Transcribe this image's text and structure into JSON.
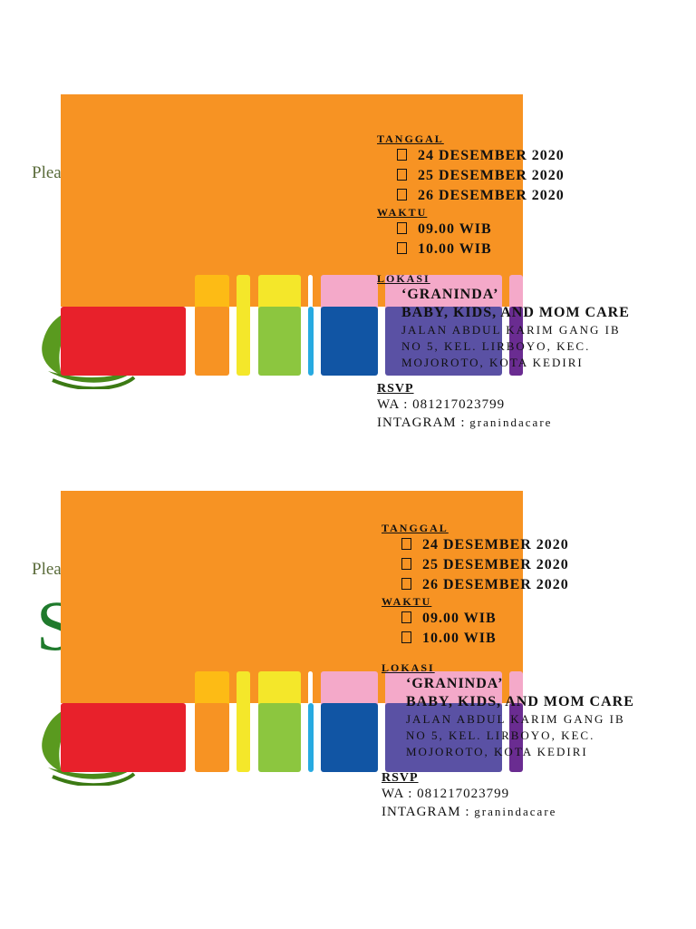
{
  "background": {
    "partial_text": "Plea",
    "script_letter": "S"
  },
  "colors": {
    "orange_panel": "#f79323",
    "bars": [
      "#e8212b",
      "#f79323",
      "#f4e72a",
      "#8cc63f",
      "#27aae1",
      "#1155a4",
      "#5a51a4",
      "#6a2c91"
    ],
    "bars_top": [
      "#fdbb15",
      "#f4e72a",
      "#f4e72a",
      "#f4a9c9",
      "#f4a9c9",
      "#f4a9c9"
    ]
  },
  "invitation": {
    "tanggal_label": "TANGGAL",
    "dates": [
      "24 DESEMBER 2020",
      "25 DESEMBER 2020",
      "26 DESEMBER 2020"
    ],
    "waktu_label": "WAKTU",
    "times": [
      "09.00 WIB",
      "10.00 WIB"
    ],
    "lokasi_label": "LOKASI",
    "venue_name": "‘GRANINDA’",
    "venue_sub": "BABY, KIDS, AND MOM CARE",
    "address": [
      "JALAN ABDUL KARIM GANG IB",
      "NO 5, KEL. LIRBOYO, KEC.",
      "MOJOROTO, KOTA KEDIRI"
    ],
    "rsvp_label": "RSVP",
    "wa_line": "WA : 081217023799",
    "ig_prefix": "INTAGRAM : ",
    "ig_handle": "granindacare"
  }
}
